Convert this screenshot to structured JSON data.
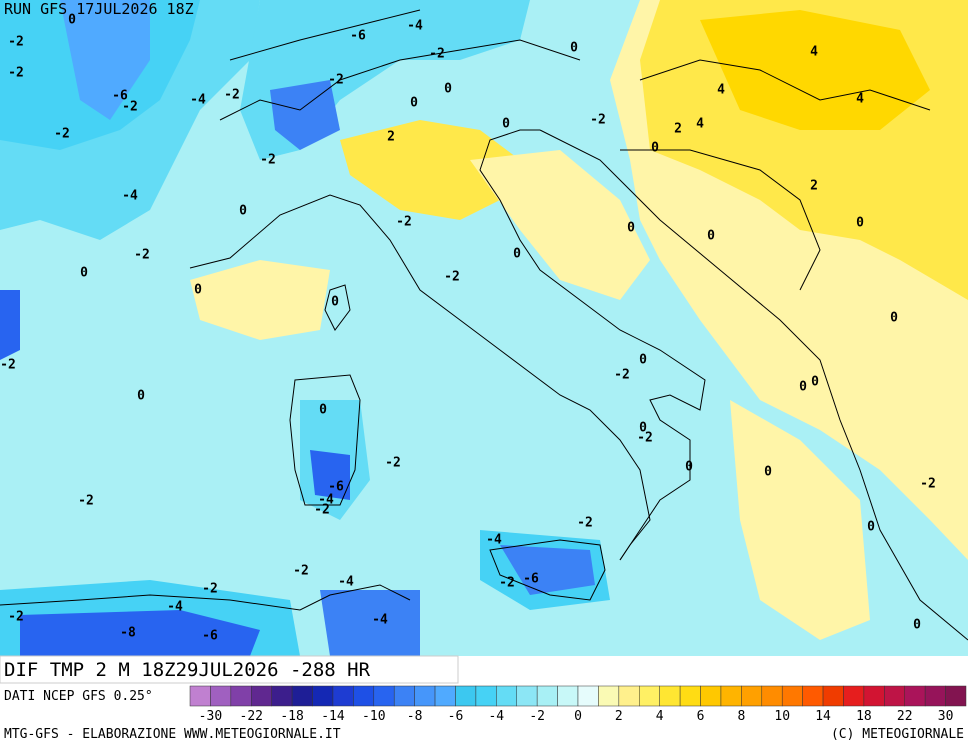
{
  "header": {
    "run": "RUN GFS 17JUL2026 18Z"
  },
  "map": {
    "contour_labels": [
      0,
      -2,
      -2,
      -6,
      -2,
      -4,
      -2,
      -2,
      -2,
      -4,
      0,
      -2,
      0,
      0,
      -6,
      -4,
      -2,
      0,
      4,
      -2,
      0,
      0,
      4,
      4,
      2,
      0,
      -2,
      2,
      4,
      0,
      2,
      0,
      -2,
      0,
      0,
      0,
      -2,
      0,
      0,
      -2,
      0,
      0,
      -2,
      0,
      0,
      0,
      0,
      -2,
      -2,
      0,
      0,
      -6,
      -4,
      -2,
      -2,
      -2,
      -2,
      0,
      -4,
      -2,
      -6,
      -2,
      -4,
      -2,
      -4,
      -2,
      -8,
      -6,
      -4,
      0
    ]
  },
  "footer": {
    "field": "DIF TMP 2 M 18Z29JUL2026 -288 HR",
    "source": "DATI NCEP GFS 0.25°",
    "credit": "MTG-GFS - ELABORAZIONE WWW.METEOGIORNALE.IT",
    "copyright": "(C) METEOGIORNALE"
  },
  "colorbar": {
    "labels": [
      -30,
      -22,
      -18,
      -14,
      -10,
      -8,
      -6,
      -4,
      -2,
      0,
      2,
      4,
      6,
      8,
      10,
      14,
      18,
      22,
      30
    ],
    "colors": [
      "#c080d0",
      "#a060c0",
      "#8040a8",
      "#602890",
      "#3c1e8c",
      "#1e1e96",
      "#1428b4",
      "#1e3cd2",
      "#1e50e6",
      "#2864f0",
      "#3c82f5",
      "#4696fa",
      "#50aaff",
      "#3cc8f0",
      "#46d2f5",
      "#64dcf5",
      "#8ce6f5",
      "#a8f0f5",
      "#c8f8f8",
      "#e6fcfc",
      "#fafab4",
      "#fff08c",
      "#fff064",
      "#ffe632",
      "#ffdc14",
      "#ffc800",
      "#ffb400",
      "#ffa000",
      "#ff8c00",
      "#ff7800",
      "#ff5a00",
      "#f03c00",
      "#e61e1e",
      "#d21432",
      "#be1446",
      "#aa145a",
      "#96145a",
      "#821450"
    ]
  }
}
